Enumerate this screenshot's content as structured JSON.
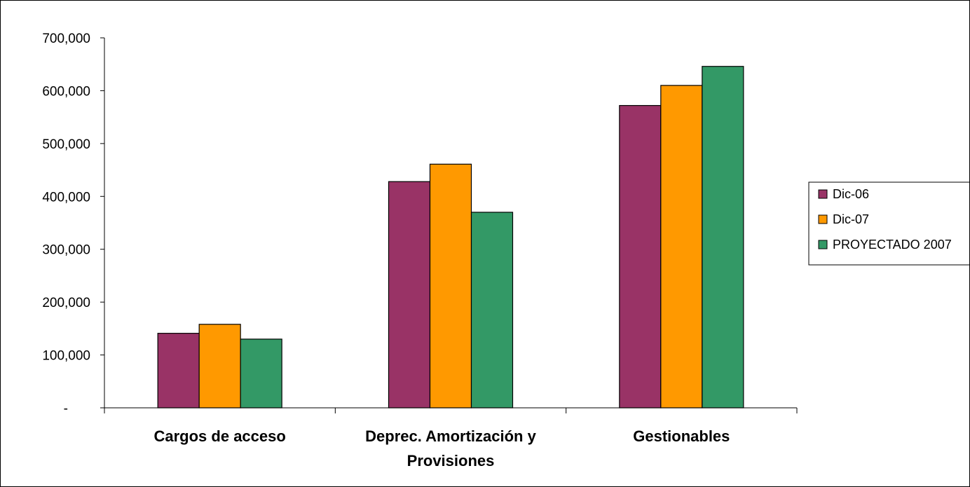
{
  "chart_data": {
    "type": "bar",
    "title": "",
    "xlabel": "",
    "ylabel": "",
    "categories": [
      [
        "Cargos de acceso"
      ],
      [
        "Deprec. Amortización y",
        "Provisiones"
      ],
      [
        "Gestionables"
      ]
    ],
    "series": [
      {
        "name": "Dic-06",
        "color": "#993366",
        "values": [
          141000,
          428000,
          572000
        ]
      },
      {
        "name": "Dic-07",
        "color": "#FF9900",
        "values": [
          158000,
          461000,
          610000
        ]
      },
      {
        "name": "PROYECTADO 2007",
        "color": "#339966",
        "values": [
          130000,
          370000,
          646000
        ]
      }
    ],
    "ylim": [
      0,
      700000
    ],
    "yticks": [
      0,
      100000,
      200000,
      300000,
      400000,
      500000,
      600000,
      700000
    ],
    "ytick_labels": [
      "-",
      "100,000",
      "200,000",
      "300,000",
      "400,000",
      "500,000",
      "600,000",
      "700,000"
    ],
    "grid": false,
    "legend_position": "right"
  }
}
